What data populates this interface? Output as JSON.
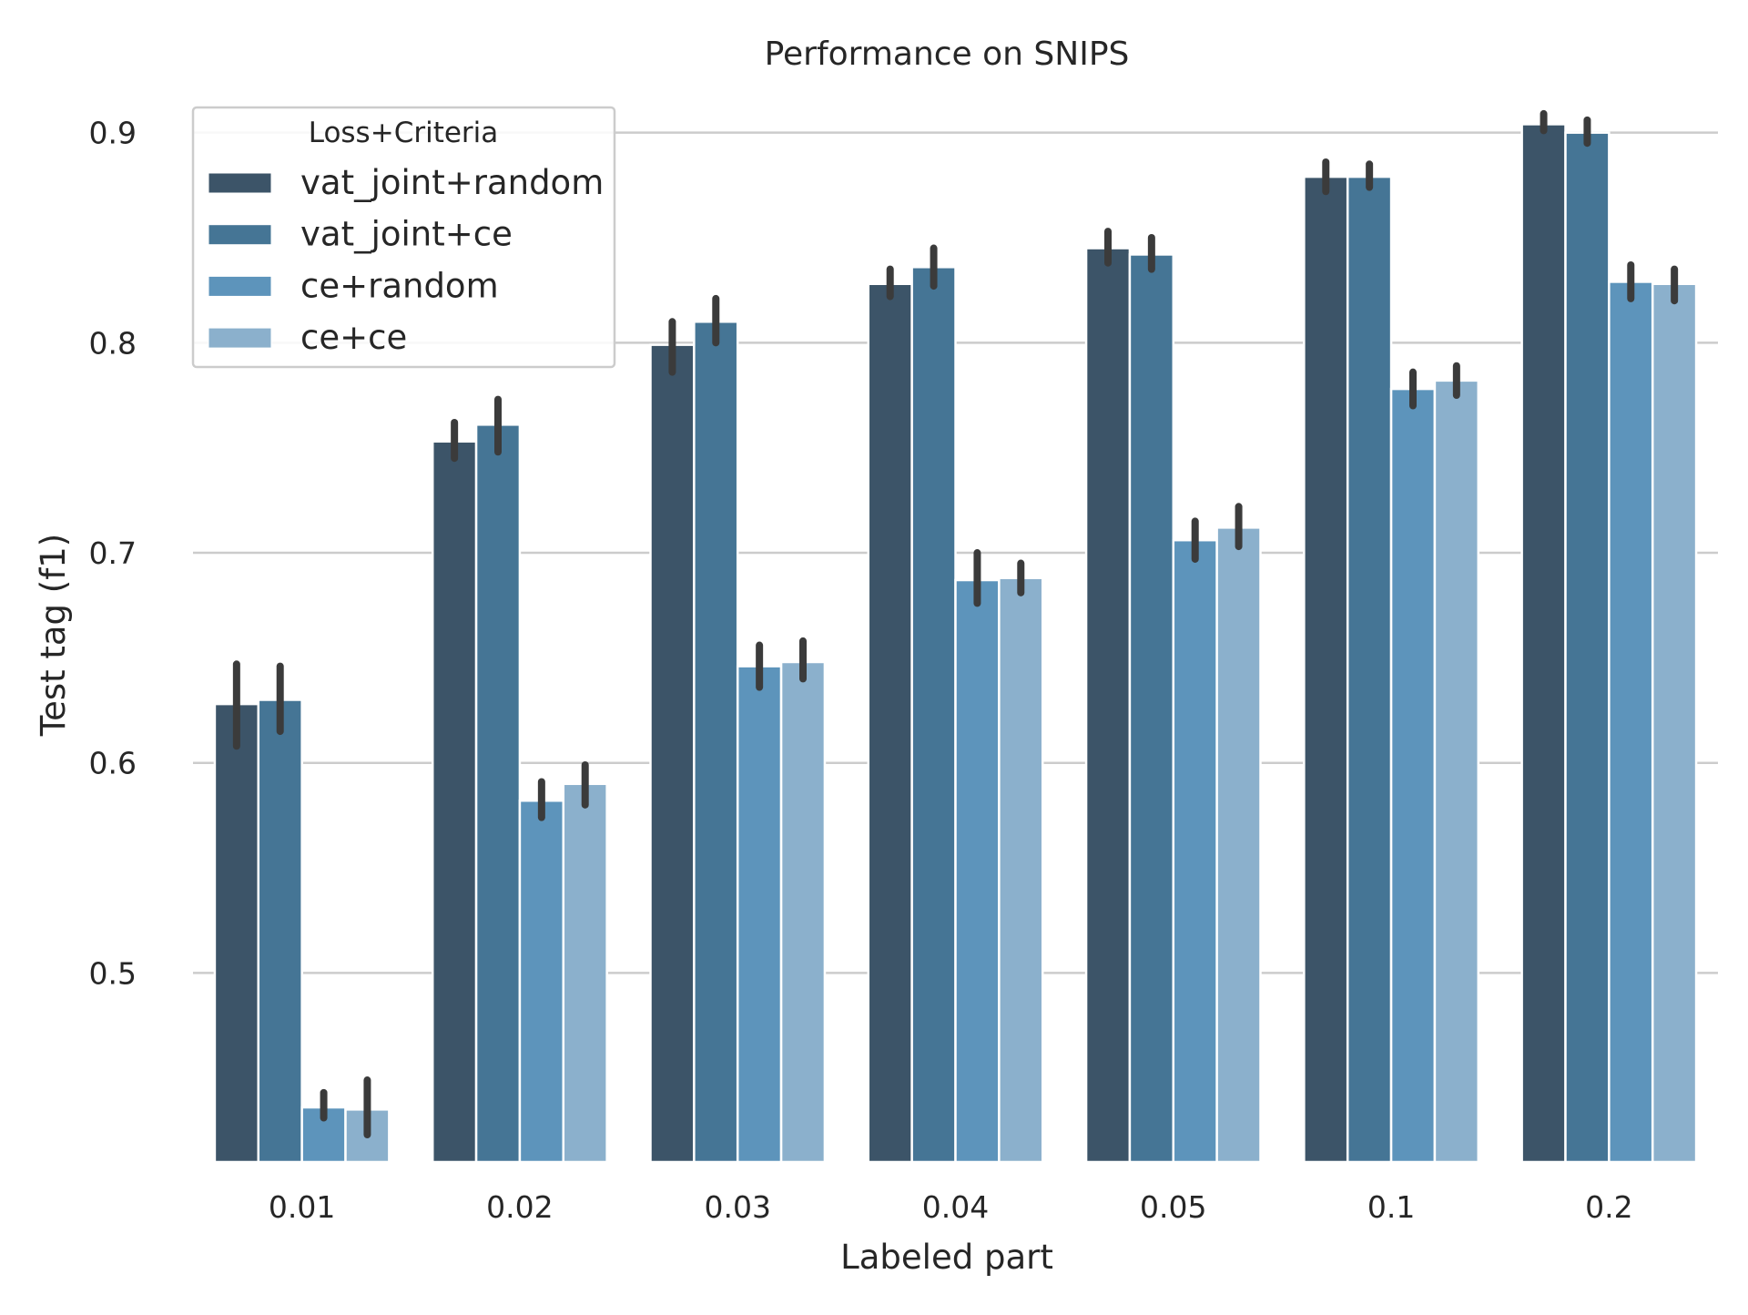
{
  "chart_data": {
    "type": "bar",
    "title": "Performance on SNIPS",
    "xlabel": "Labeled part",
    "ylabel": "Test tag (f1)",
    "categories": [
      "0.01",
      "0.02",
      "0.03",
      "0.04",
      "0.05",
      "0.1",
      "0.2"
    ],
    "ylim": [
      0.41,
      0.91
    ],
    "yticks": [
      0.5,
      0.6,
      0.7,
      0.8,
      0.9
    ],
    "ytick_labels": [
      "0.5",
      "0.6",
      "0.7",
      "0.8",
      "0.9"
    ],
    "grid": "horizontal",
    "legend": {
      "title": "Loss+Criteria",
      "placement": "top-left"
    },
    "series": [
      {
        "name": "vat_joint+random",
        "color": "#3c5468",
        "values": [
          0.628,
          0.753,
          0.799,
          0.828,
          0.845,
          0.879,
          0.904
        ],
        "err_low": [
          0.608,
          0.745,
          0.786,
          0.822,
          0.838,
          0.872,
          0.901
        ],
        "err_high": [
          0.647,
          0.762,
          0.81,
          0.835,
          0.853,
          0.886,
          0.909
        ]
      },
      {
        "name": "vat_joint+ce",
        "color": "#457595",
        "values": [
          0.63,
          0.761,
          0.81,
          0.836,
          0.842,
          0.879,
          0.9
        ],
        "err_low": [
          0.615,
          0.748,
          0.8,
          0.827,
          0.835,
          0.874,
          0.895
        ],
        "err_high": [
          0.646,
          0.773,
          0.821,
          0.845,
          0.85,
          0.885,
          0.906
        ]
      },
      {
        "name": "ce+random",
        "color": "#5d94bb",
        "values": [
          0.436,
          0.582,
          0.646,
          0.687,
          0.706,
          0.778,
          0.829
        ],
        "err_low": [
          0.431,
          0.574,
          0.636,
          0.676,
          0.697,
          0.77,
          0.821
        ],
        "err_high": [
          0.443,
          0.591,
          0.656,
          0.7,
          0.715,
          0.786,
          0.837
        ]
      },
      {
        "name": "ce+ce",
        "color": "#8bb0cc",
        "values": [
          0.435,
          0.59,
          0.648,
          0.688,
          0.712,
          0.782,
          0.828
        ],
        "err_low": [
          0.423,
          0.58,
          0.64,
          0.681,
          0.703,
          0.775,
          0.82
        ],
        "err_high": [
          0.449,
          0.599,
          0.658,
          0.695,
          0.722,
          0.789,
          0.835
        ]
      }
    ],
    "grid_color": "#cccccc",
    "errorbar_color": "#3b3b3b"
  }
}
